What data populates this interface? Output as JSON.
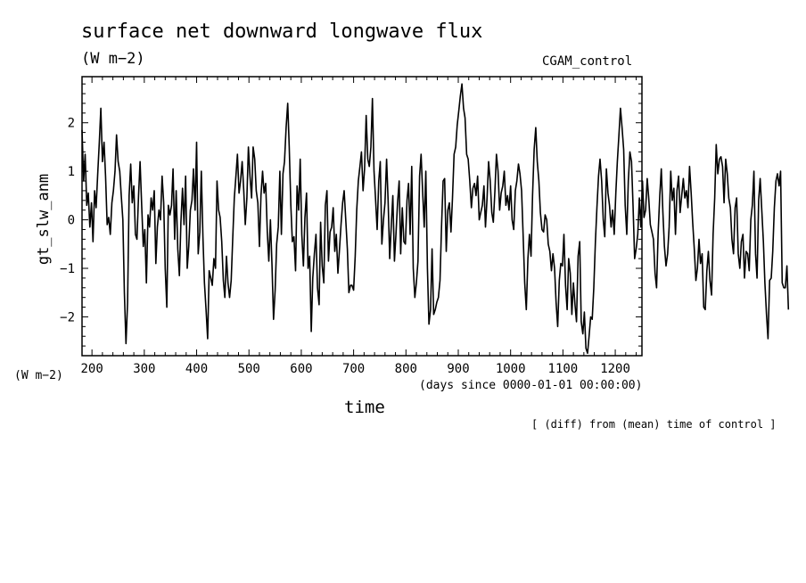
{
  "header": {
    "title": "surface net downward longwave flux",
    "units": "(W m−2)",
    "dataset": "CGAM_control"
  },
  "axes": {
    "ylabel": "gt_slw_anm",
    "yunits": "(W m−2)",
    "xlabel": "time",
    "xunits": "(days since 0000-01-01 00:00:00)"
  },
  "footnote": "[ (diff) from (mean) time of control ]",
  "chart_data": {
    "type": "line",
    "title": "surface net downward longwave flux",
    "xlabel": "time",
    "ylabel": "gt_slw_anm",
    "xlim": [
      181,
      1251
    ],
    "ylim": [
      -2.8,
      2.95
    ],
    "x_ticks": [
      200,
      300,
      400,
      500,
      600,
      700,
      800,
      900,
      1000,
      1100,
      1200
    ],
    "y_ticks": [
      -2,
      -1,
      0,
      1,
      2
    ],
    "y_tick_labels": [
      "−2",
      "−1",
      "0",
      "1",
      "2"
    ],
    "grid": false,
    "legend": "none",
    "x_step": 3,
    "x_start": 181,
    "series": [
      {
        "color": "#000000",
        "values": [
          1.85,
          0.8,
          1.35,
          0.3,
          0.55,
          -0.15,
          0.35,
          -0.45,
          0.6,
          0.25,
          0.95,
          1.6,
          2.3,
          1.2,
          1.6,
          0.9,
          -0.1,
          0.05,
          -0.3,
          0.35,
          0.6,
          1.0,
          1.75,
          1.2,
          1.0,
          0.5,
          0.0,
          -1.5,
          -2.55,
          -1.7,
          0.5,
          1.15,
          0.35,
          0.7,
          -0.3,
          -0.4,
          0.5,
          1.2,
          0.3,
          -0.55,
          -0.2,
          -1.3,
          0.1,
          -0.15,
          0.45,
          0.2,
          0.6,
          -0.9,
          -0.15,
          0.2,
          0.0,
          0.9,
          0.35,
          -1.0,
          -1.8,
          0.3,
          0.1,
          0.3,
          1.05,
          -0.4,
          0.6,
          -0.6,
          -1.15,
          -0.05,
          0.65,
          -0.1,
          0.9,
          -1.0,
          -0.55,
          0.2,
          0.4,
          1.05,
          0.2,
          1.6,
          -0.7,
          -0.25,
          1.0,
          -0.35,
          -1.3,
          -1.85,
          -2.45,
          -1.05,
          -1.2,
          -1.35,
          -0.8,
          -1.0,
          0.8,
          0.2,
          0.05,
          -0.45,
          -1.25,
          -1.6,
          -0.75,
          -1.3,
          -1.6,
          -1.25,
          -0.4,
          0.45,
          0.9,
          1.35,
          0.55,
          0.8,
          1.2,
          0.6,
          -0.1,
          0.45,
          1.5,
          0.9,
          0.45,
          1.5,
          1.25,
          0.6,
          0.35,
          -0.55,
          0.5,
          1.0,
          0.55,
          0.75,
          -0.25,
          -0.85,
          0.0,
          -0.95,
          -2.05,
          -1.45,
          -0.5,
          -0.15,
          1.0,
          -0.3,
          0.95,
          1.2,
          1.9,
          2.4,
          1.5,
          0.3,
          -0.45,
          -0.35,
          -1.05,
          0.7,
          0.2,
          1.25,
          -0.3,
          -0.95,
          0.05,
          0.55,
          -1.0,
          -0.75,
          -2.3,
          -1.2,
          -0.7,
          -0.3,
          -1.4,
          -1.75,
          -0.05,
          -0.95,
          -1.3,
          0.3,
          0.6,
          -0.85,
          -0.25,
          -0.15,
          0.25,
          -0.65,
          -0.3,
          -1.1,
          -0.6,
          -0.1,
          0.35,
          0.6,
          0.0,
          -0.6,
          -1.5,
          -1.35,
          -1.35,
          -1.45,
          -0.75,
          0.2,
          0.8,
          1.1,
          1.4,
          0.6,
          1.05,
          2.15,
          1.25,
          1.1,
          1.5,
          2.5,
          1.0,
          0.4,
          -0.2,
          0.8,
          1.2,
          -0.5,
          0.0,
          0.35,
          1.25,
          0.4,
          -0.8,
          -0.1,
          0.5,
          -0.85,
          -0.3,
          0.35,
          0.8,
          -0.7,
          0.25,
          -0.45,
          -0.5,
          0.4,
          0.75,
          -0.3,
          1.1,
          -1.0,
          -1.6,
          -1.3,
          -0.85,
          0.9,
          1.35,
          0.55,
          -0.15,
          1.0,
          -1.0,
          -2.15,
          -1.85,
          -0.6,
          -1.95,
          -1.85,
          -1.7,
          -1.6,
          -1.25,
          -0.15,
          0.8,
          0.85,
          -0.65,
          0.2,
          0.35,
          -0.25,
          0.45,
          1.35,
          1.5,
          1.95,
          2.25,
          2.55,
          2.8,
          2.3,
          2.1,
          1.35,
          1.25,
          0.8,
          0.25,
          0.65,
          0.75,
          0.5,
          0.9,
          0.0,
          0.15,
          0.3,
          0.7,
          -0.15,
          0.45,
          1.2,
          0.8,
          0.15,
          -0.05,
          0.6,
          1.35,
          1.0,
          0.2,
          0.55,
          0.7,
          1.0,
          0.3,
          0.5,
          0.2,
          0.7,
          0.0,
          -0.2,
          0.6,
          0.8,
          1.15,
          0.95,
          0.6,
          -0.35,
          -1.3,
          -1.85,
          -0.8,
          -0.3,
          -0.75,
          0.5,
          1.45,
          1.9,
          1.2,
          0.8,
          0.15,
          -0.2,
          -0.25,
          0.1,
          0.0,
          -0.5,
          -0.65,
          -1.05,
          -0.7,
          -1.0,
          -1.7,
          -2.2,
          -1.25,
          -0.9,
          -0.95,
          -0.3,
          -1.35,
          -1.85,
          -0.8,
          -1.1,
          -1.95,
          -1.3,
          -1.75,
          -2.1,
          -0.75,
          -0.45,
          -2.1,
          -2.35,
          -1.9,
          -2.65,
          -2.75,
          -2.4,
          -2.0,
          -2.05,
          -1.4,
          -0.45,
          0.25,
          0.9,
          1.25,
          0.8,
          0.0,
          -0.35,
          1.05,
          0.55,
          0.3,
          -0.15,
          0.2,
          -0.3,
          0.55,
          1.2,
          1.75,
          2.3,
          1.9,
          1.45,
          0.3,
          -0.3,
          0.8,
          1.4,
          1.2,
          0.3,
          -0.8,
          -0.6,
          -0.3,
          0.45,
          -0.15,
          0.8,
          0.05,
          0.2,
          0.85,
          0.45,
          -0.1,
          -0.25,
          -0.4,
          -1.1,
          -1.4,
          -0.25,
          0.5,
          1.05,
          0.15,
          -0.55,
          -0.95,
          -0.7,
          -0.15,
          1.0,
          0.4,
          0.65,
          -0.3,
          0.6,
          0.9,
          0.15,
          0.5,
          0.85,
          0.45,
          0.6,
          0.25,
          1.1,
          0.55,
          -0.05,
          -0.6,
          -1.25,
          -1.0,
          -0.4,
          -0.9,
          -0.7,
          -1.8,
          -1.85,
          -1.05,
          -0.65,
          -1.25,
          -1.55,
          -0.3,
          0.45,
          1.55,
          0.95,
          1.25,
          1.3,
          1.1,
          0.35,
          1.25,
          0.95,
          0.45,
          0.25,
          -0.4,
          -0.7,
          0.25,
          0.45,
          -0.7,
          -1.0,
          -0.45,
          -0.3,
          -1.2,
          -0.65,
          -0.7,
          -1.05,
          0.0,
          0.3,
          1.0,
          -0.7,
          -1.2,
          0.4,
          0.85,
          0.2,
          -0.45,
          -1.3,
          -1.95,
          -2.45,
          -1.25,
          -1.2,
          -0.65,
          0.25,
          0.8,
          0.95,
          0.7,
          1.0,
          -1.3,
          -1.4,
          -1.4,
          -0.95,
          -1.85
        ]
      }
    ]
  }
}
